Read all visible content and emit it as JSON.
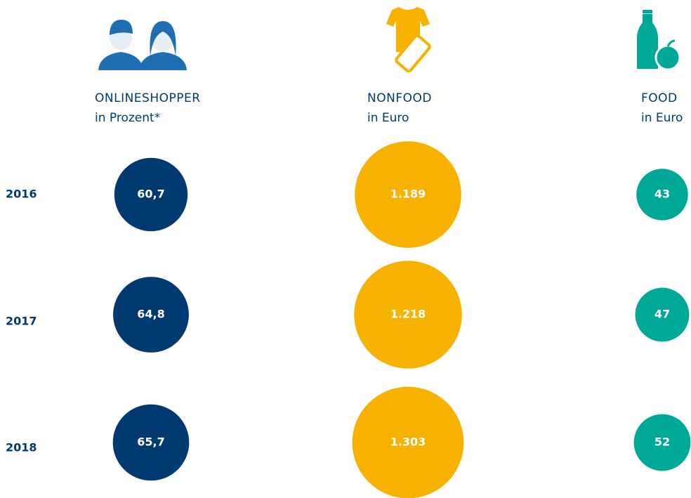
{
  "chart_data": {
    "type": "bubble",
    "categories": [
      "2016",
      "2017",
      "2018"
    ],
    "series": [
      {
        "name": "ONLINESHOPPER",
        "unit": "in Prozent*",
        "color": "#003a70",
        "values": [
          60.7,
          64.8,
          65.7
        ],
        "value_labels": [
          "60,7",
          "64,8",
          "65,7"
        ]
      },
      {
        "name": "NONFOOD",
        "unit": "in Euro",
        "color": "#f7b200",
        "values": [
          1189,
          1218,
          1303
        ],
        "value_labels": [
          "1.189",
          "1.218",
          "1.303"
        ]
      },
      {
        "name": "FOOD",
        "unit": "in Euro",
        "color": "#00a898",
        "values": [
          43,
          47,
          52
        ],
        "value_labels": [
          "43",
          "47",
          "52"
        ]
      }
    ]
  }
}
